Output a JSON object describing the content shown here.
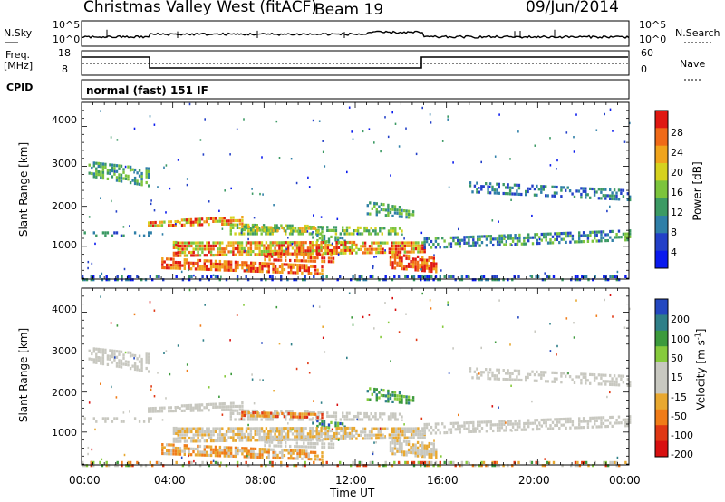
{
  "header": {
    "station": "Christmas Valley West (fitACF)",
    "beam": "Beam 19",
    "date": "09/Jun/2014"
  },
  "strip_labels": {
    "nsky": "N.Sky",
    "nsearch": "N.Search",
    "freq_line1": "Freq.",
    "freq_line2": "[MHz]",
    "nave": "Nave",
    "cpid": "CPID",
    "mode": "normal (fast) 151 IF",
    "nsky_ticks": [
      "10^5",
      "10^0"
    ],
    "nsearch_ticks": [
      "10^5",
      "10^0"
    ],
    "freq_ticks": [
      "18",
      "8"
    ],
    "nave_ticks": [
      "60",
      "0"
    ]
  },
  "colors": {
    "power_scale": [
      "#0a1aee",
      "#2340c8",
      "#2f7fa8",
      "#3c9a64",
      "#7cc43c",
      "#d6d21e",
      "#f0a41c",
      "#f06a18",
      "#e01812"
    ],
    "velocity_scale": [
      "#2448c0",
      "#2f7f88",
      "#3c9a3c",
      "#86ca3c",
      "#c8c8c0",
      "#c8c8c0",
      "#e8a830",
      "#f07c18",
      "#e03814",
      "#d81010"
    ]
  },
  "chart_data": [
    {
      "type": "heatmap",
      "name": "power",
      "ylabel": "Slant Range [km]",
      "ylim": [
        180,
        4600
      ],
      "y_ticks": [
        "4000",
        "3000",
        "2000",
        "1000"
      ],
      "x_ticks": [
        "00:00",
        "04:00",
        "08:00",
        "12:00",
        "16:00",
        "20:00",
        "00:00"
      ],
      "colorbar_label": "Power [dB]",
      "colorbar_ticks": [
        "28",
        "24",
        "20",
        "16",
        "12",
        "8",
        "4"
      ],
      "colorbar_range": [
        0,
        32
      ]
    },
    {
      "type": "heatmap",
      "name": "velocity",
      "ylabel": "Slant Range [km]",
      "ylim": [
        180,
        4600
      ],
      "y_ticks": [
        "4000",
        "3000",
        "2000",
        "1000"
      ],
      "x_ticks": [
        "00:00",
        "04:00",
        "08:00",
        "12:00",
        "16:00",
        "20:00",
        "00:00"
      ],
      "xlabel": "Time UT",
      "colorbar_label_main": "Velocity [m s",
      "colorbar_label_sup": "-1",
      "colorbar_label_end": "]",
      "colorbar_ticks": [
        "200",
        "100",
        "50",
        "15",
        "-15",
        "-50",
        "-100",
        "-200"
      ]
    }
  ]
}
